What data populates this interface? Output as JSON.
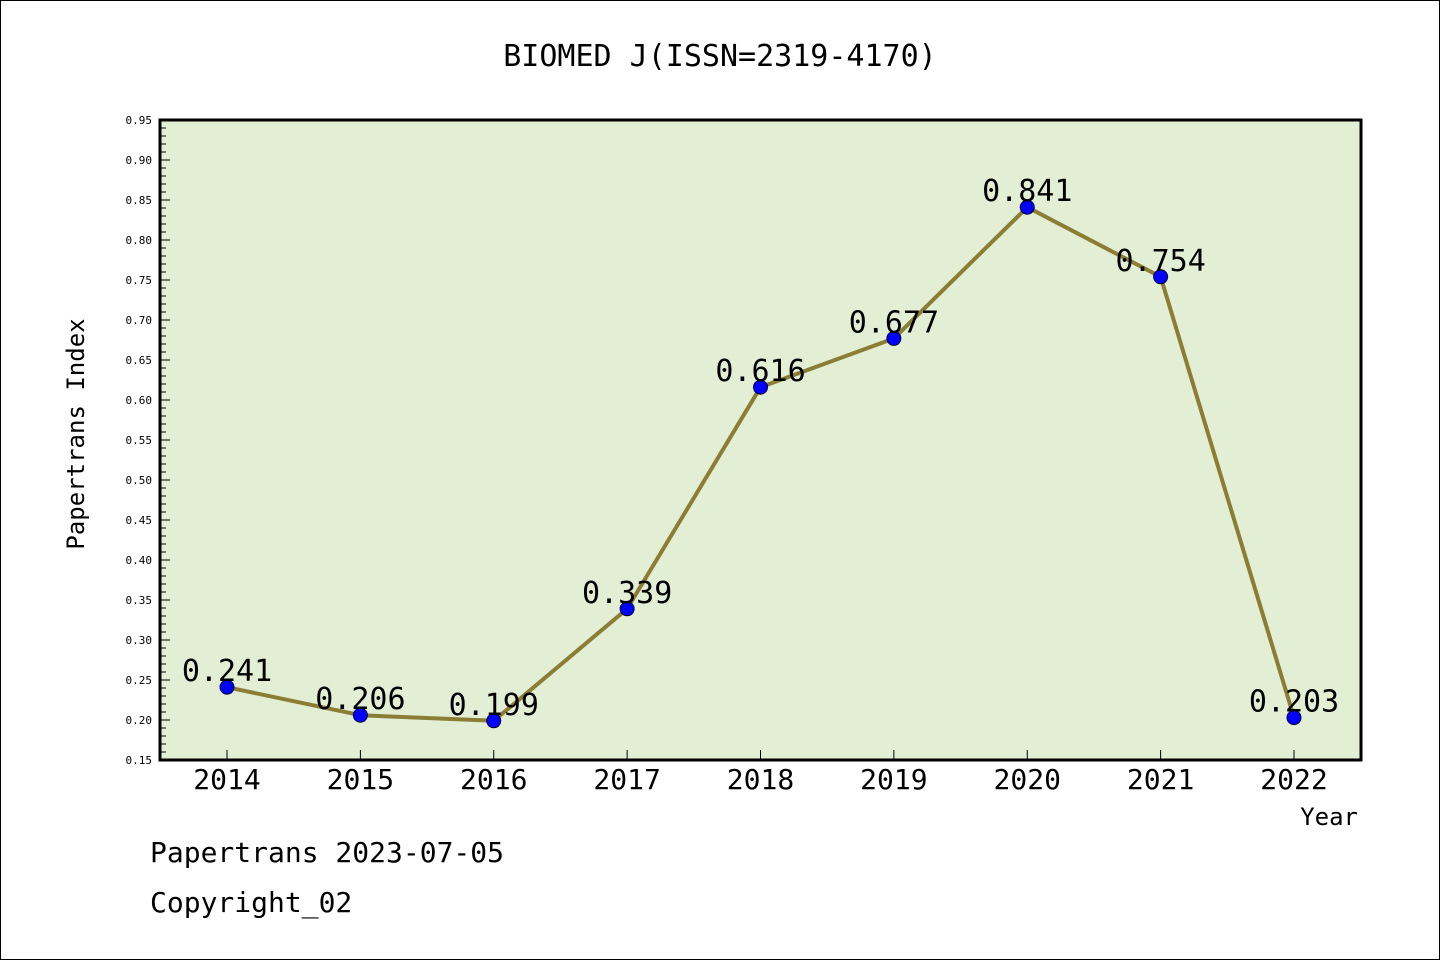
{
  "chart_data": {
    "type": "line",
    "title": "BIOMED J(ISSN=2319-4170)",
    "xlabel": "Year",
    "ylabel": "Papertrans Index",
    "categories": [
      "2014",
      "2015",
      "2016",
      "2017",
      "2018",
      "2019",
      "2020",
      "2021",
      "2022"
    ],
    "series": [
      {
        "values": [
          0.241,
          0.206,
          0.199,
          0.339,
          0.616,
          0.677,
          0.841,
          0.754,
          0.203
        ],
        "data_labels": [
          "0.241",
          "0.206",
          "0.199",
          "0.339",
          "0.616",
          "0.677",
          "0.841",
          "0.754",
          "0.203"
        ],
        "line_color": "#8b7d33",
        "marker_color": "#0000ff"
      }
    ],
    "ylim": [
      0.15,
      0.95
    ],
    "yticks": [
      "0.15",
      "0.20",
      "0.25",
      "0.30",
      "0.35",
      "0.40",
      "0.45",
      "0.50",
      "0.55",
      "0.60",
      "0.65",
      "0.70",
      "0.75",
      "0.80",
      "0.85",
      "0.90",
      "0.95"
    ],
    "grid": false,
    "plot_background": "#e2efd5"
  },
  "footer": {
    "date_text": "Papertrans 2023-07-05",
    "copyright_text": "Copyright_02"
  }
}
